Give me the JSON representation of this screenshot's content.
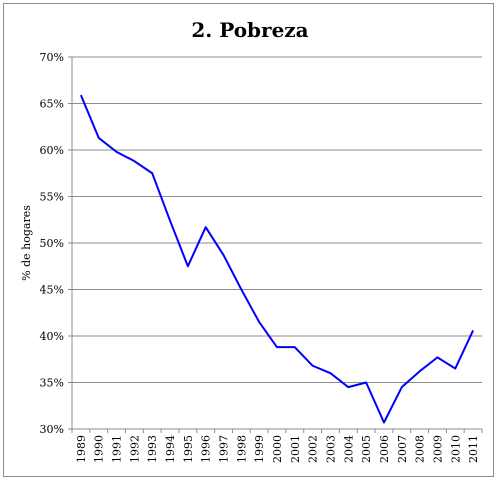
{
  "chart_data": {
    "type": "line",
    "title": "2. Pobreza",
    "xlabel": "",
    "ylabel": "% de hogares",
    "ylim": [
      30,
      70
    ],
    "ytick_step": 5,
    "ytick_suffix": "%",
    "grid": true,
    "legend": "none",
    "line_color": "#0000ff",
    "x": [
      "1989",
      "1990",
      "1991",
      "1992",
      "1993",
      "1994",
      "1995",
      "1996",
      "1997",
      "1998",
      "1999",
      "2000",
      "2001",
      "2002",
      "2003",
      "2004",
      "2005",
      "2006",
      "2007",
      "2008",
      "2009",
      "2010",
      "2011"
    ],
    "series": [
      {
        "values": [
          65.9,
          61.3,
          59.8,
          58.8,
          57.5,
          52.4,
          47.5,
          51.7,
          48.7,
          45.0,
          41.5,
          38.8,
          38.8,
          36.8,
          36.0,
          34.5,
          35.0,
          30.7,
          34.5,
          36.2,
          37.7,
          36.5,
          40.6
        ]
      }
    ]
  }
}
